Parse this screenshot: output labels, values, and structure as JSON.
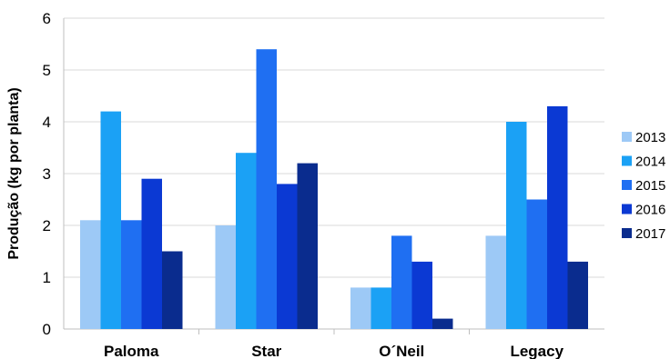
{
  "chart_data": {
    "type": "bar",
    "title": "",
    "xlabel": "",
    "ylabel": "Produção (kg por planta)",
    "ylim": [
      0,
      6
    ],
    "yticks": [
      "0",
      "1",
      "2",
      "3",
      "4",
      "5",
      "6"
    ],
    "categories": [
      "Paloma",
      "Star",
      "O´Neil",
      "Legacy"
    ],
    "series": [
      {
        "name": "2013",
        "color": "#9dc9f6",
        "values": [
          2.1,
          2.0,
          0.8,
          1.8
        ]
      },
      {
        "name": "2014",
        "color": "#1ba1f5",
        "values": [
          4.2,
          3.4,
          0.8,
          4.0
        ]
      },
      {
        "name": "2015",
        "color": "#1f6ff2",
        "values": [
          2.1,
          5.4,
          1.8,
          2.5
        ]
      },
      {
        "name": "2016",
        "color": "#0b39d3",
        "values": [
          2.9,
          2.8,
          1.3,
          4.3
        ]
      },
      {
        "name": "2017",
        "color": "#0a2c8e",
        "values": [
          1.5,
          3.2,
          0.2,
          1.3
        ]
      }
    ],
    "grid": true,
    "legend": "right"
  }
}
